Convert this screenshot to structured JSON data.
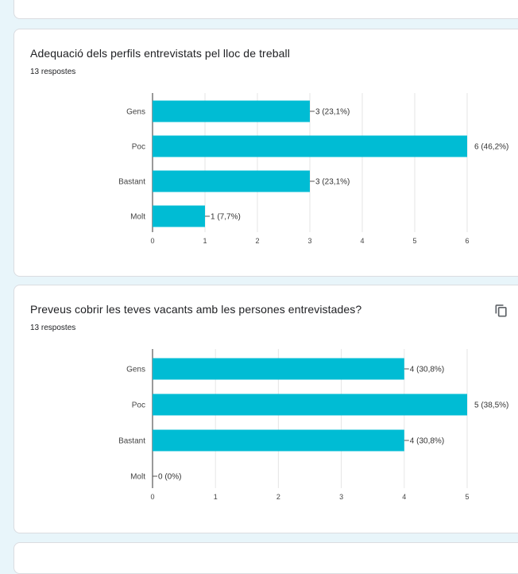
{
  "forms": [
    {
      "title": "Adequació dels perfils entrevistats pel lloc de treball",
      "responses": "13 respostes",
      "show_copy": false
    },
    {
      "title": "Preveus cobrir les teves vacants amb les persones entrevistades?",
      "responses": "13 respostes",
      "show_copy": true
    }
  ],
  "icons": {
    "copy": "copy-icon"
  },
  "colors": {
    "bar": "#00bcd4",
    "background": "#e8f5fa"
  },
  "chart_data": [
    {
      "type": "bar",
      "orientation": "horizontal",
      "categories": [
        "Gens",
        "Poc",
        "Bastant",
        "Molt"
      ],
      "values": [
        3,
        6,
        3,
        1
      ],
      "data_labels": [
        "3 (23,1%)",
        "6 (46,2%)",
        "3 (23,1%)",
        "1 (7,7%)"
      ],
      "xlim": [
        0,
        6
      ],
      "xticks": [
        "0",
        "1",
        "2",
        "3",
        "4",
        "5",
        "6"
      ],
      "grid": true,
      "title": "Adequació dels perfils entrevistats pel lloc de treball"
    },
    {
      "type": "bar",
      "orientation": "horizontal",
      "categories": [
        "Gens",
        "Poc",
        "Bastant",
        "Molt"
      ],
      "values": [
        4,
        5,
        4,
        0
      ],
      "data_labels": [
        "4 (30,8%)",
        "5 (38,5%)",
        "4 (30,8%)",
        "0 (0%)"
      ],
      "xlim": [
        0,
        5
      ],
      "xticks": [
        "0",
        "1",
        "2",
        "3",
        "4",
        "5"
      ],
      "grid": true,
      "title": "Preveus cobrir les teves vacants amb les persones entrevistades?"
    }
  ]
}
